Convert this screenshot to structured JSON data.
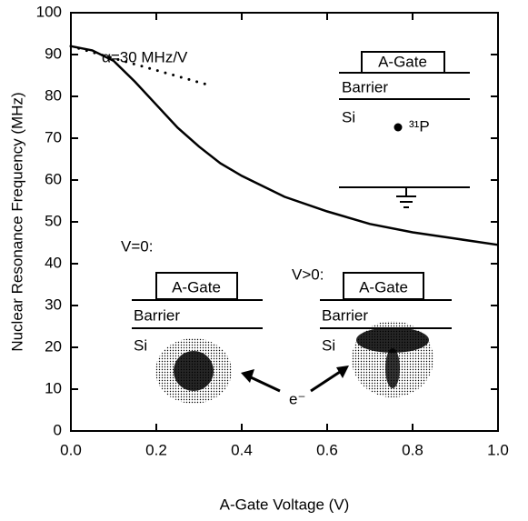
{
  "chart_data": {
    "type": "line",
    "xlabel": "A-Gate Voltage (V)",
    "ylabel": "Nuclear Resonance Frequency (MHz)",
    "series": [
      {
        "color": "#000000",
        "style": "solid",
        "x": [
          0,
          0.05,
          0.1,
          0.15,
          0.2,
          0.25,
          0.3,
          0.35,
          0.4,
          0.5,
          0.6,
          0.7,
          0.8,
          0.9,
          1.0
        ],
        "values": [
          92,
          91,
          88.5,
          83.5,
          78,
          72.5,
          68,
          64,
          61,
          56,
          52.5,
          49.5,
          47.5,
          46,
          44.5
        ]
      },
      {
        "color": "#000000",
        "style": "dotted",
        "x": [
          0,
          0.33
        ],
        "values": [
          92,
          82.5
        ]
      }
    ],
    "xlim": [
      0,
      1.0
    ],
    "xticks": [
      {
        "value": 0,
        "label": "0.0"
      },
      0.2,
      0.4,
      0.6,
      0.8,
      {
        "value": 1.0,
        "label": "1.0"
      }
    ],
    "ylim": [
      0,
      100
    ],
    "yticks": [
      0,
      10,
      20,
      30,
      40,
      50,
      60,
      70,
      80,
      90,
      100
    ],
    "annotations": {
      "alpha": "α=30 MHz/V",
      "v0": "V=0:",
      "vpos": "V>0:",
      "electron": "e⁻",
      "gate": "A-Gate",
      "barrier": "Barrier",
      "si": "Si",
      "phosphorus": "³¹P"
    }
  }
}
